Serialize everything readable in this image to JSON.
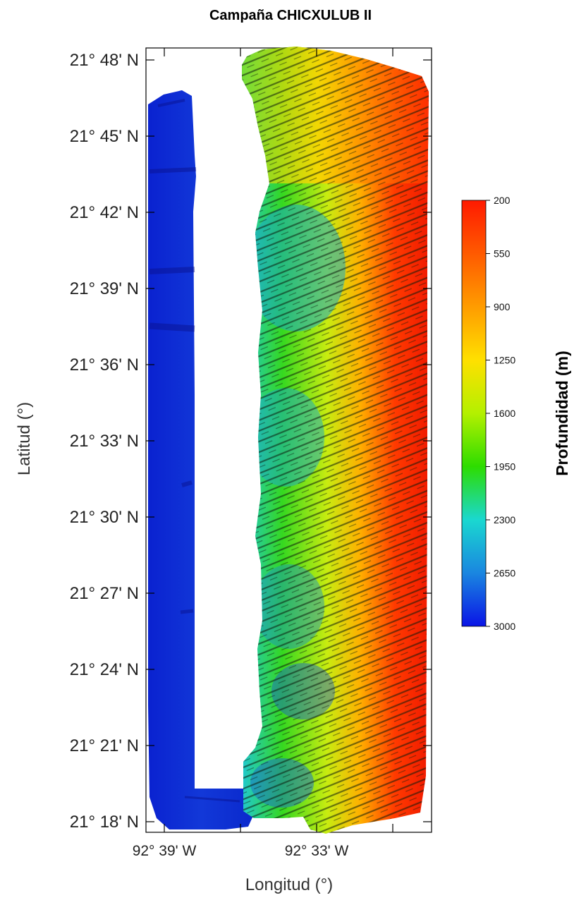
{
  "map": {
    "title": "Campaña CHICXULUB II",
    "xlabel": "Longitud (°)",
    "ylabel": "Latitud (°)",
    "lat_ticks": [
      "21° 48' N",
      "21° 45' N",
      "21° 42' N",
      "21° 39' N",
      "21° 36' N",
      "21° 33' N",
      "21° 30' N",
      "21° 27' N",
      "21° 24' N",
      "21° 21' N",
      "21° 18' N"
    ],
    "lon_ticks": [
      "92° 39' W",
      "92° 33' W"
    ],
    "colorbar": {
      "title": "Profundidad (m)",
      "labels": [
        "200",
        "550",
        "900",
        "1250",
        "1600",
        "1950",
        "2300",
        "2650",
        "3000"
      ],
      "min": 200,
      "max": 3000,
      "colors": [
        "#ff1a00",
        "#ff5a00",
        "#ff9c00",
        "#ffe000",
        "#b4f000",
        "#2ddc00",
        "#1ad8d0",
        "#1a86e0",
        "#0a14e6"
      ]
    }
  }
}
